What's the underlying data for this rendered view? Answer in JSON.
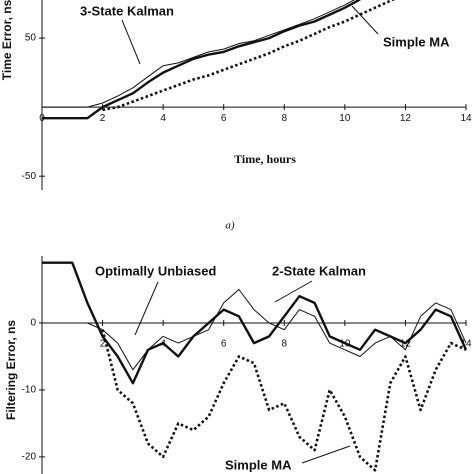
{
  "chart_data": [
    {
      "type": "line",
      "x_label": "Time, hours",
      "y_label": "Time Error, ns",
      "caption": "a)",
      "x": [
        0,
        0.5,
        1,
        1.5,
        2,
        2.5,
        3,
        3.5,
        4,
        4.5,
        5,
        5.5,
        6,
        6.5,
        7,
        7.5,
        8,
        8.5,
        9,
        9.5,
        10,
        10.5,
        11,
        11.5,
        12,
        12.5,
        13,
        13.5,
        14
      ],
      "series": [
        {
          "color": "#111111",
          "style": "thick",
          "values": [
            -8,
            -8,
            -8,
            -8,
            0,
            5,
            10,
            18,
            25,
            30,
            35,
            38,
            40,
            44,
            47,
            50,
            55,
            59,
            62,
            67,
            72,
            78,
            null,
            null,
            null,
            null,
            null,
            null,
            null
          ]
        },
        {
          "name": "3-State Kalman",
          "color": "#111111",
          "style": "thin",
          "values": [
            0,
            0,
            0,
            0,
            3,
            8,
            14,
            22,
            30,
            32,
            36,
            40,
            42,
            46,
            48,
            52,
            56,
            60,
            64,
            69,
            74,
            80,
            null,
            null,
            null,
            null,
            null,
            null,
            null
          ]
        },
        {
          "name": "Simple MA",
          "color": "#111111",
          "style": "dotted",
          "values": [
            null,
            null,
            null,
            null,
            -2,
            0,
            4,
            8,
            12,
            16,
            20,
            23,
            27,
            31,
            35,
            39,
            44,
            48,
            53,
            58,
            62,
            67,
            72,
            77,
            82,
            null,
            null,
            null,
            null
          ]
        }
      ],
      "xlim": [
        0,
        14
      ],
      "ylim": [
        -60,
        100
      ],
      "xticks": [
        0,
        2,
        4,
        6,
        8,
        10,
        12,
        14
      ],
      "yticks": [
        -50,
        50
      ]
    },
    {
      "type": "line",
      "y_label": "Filtering Error, ns",
      "x": [
        0,
        0.5,
        1,
        1.5,
        2,
        2.5,
        3,
        3.5,
        4,
        4.5,
        5,
        5.5,
        6,
        6.5,
        7,
        7.5,
        8,
        8.5,
        9,
        9.5,
        10,
        10.5,
        11,
        11.5,
        12,
        12.5,
        13,
        13.5,
        14
      ],
      "series": [
        {
          "name": "Optimally Unbiased",
          "color": "#111111",
          "style": "thick",
          "values": [
            9,
            9,
            9,
            3,
            -2,
            -5,
            -9,
            -4,
            -3,
            -5,
            -2,
            0,
            2,
            1,
            -3,
            -2,
            1,
            4,
            3,
            -2,
            -3,
            -4,
            -1,
            -2,
            -3,
            -1,
            2,
            1,
            -4
          ]
        },
        {
          "name": "2-State Kalman",
          "color": "#111111",
          "style": "thin",
          "values": [
            0,
            0,
            0,
            0,
            -1,
            -3,
            -7,
            -4,
            -2,
            -3,
            -2,
            -1,
            3,
            5,
            2,
            0,
            -1,
            2,
            1,
            -3,
            -4,
            -5,
            -3,
            -2,
            -4,
            1,
            3,
            2,
            -3
          ]
        },
        {
          "name": "Simple MA",
          "color": "#111111",
          "style": "dotted",
          "values": [
            null,
            null,
            null,
            null,
            -1,
            -10,
            -12,
            -18,
            -20,
            -15,
            -16,
            -14,
            -9,
            -5,
            -6,
            -13,
            -12,
            -17,
            -19,
            -10,
            -14,
            -20,
            -22,
            -9,
            -5,
            -13,
            -7,
            -3,
            -4
          ]
        }
      ],
      "xlim": [
        0,
        14
      ],
      "ylim": [
        -23,
        10
      ],
      "xticks": [
        2,
        4,
        6,
        8,
        10,
        12,
        14
      ],
      "yticks": [
        -20,
        -10,
        0
      ]
    }
  ]
}
